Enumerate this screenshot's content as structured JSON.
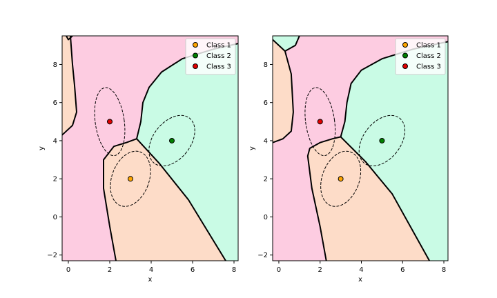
{
  "chart_data": [
    {
      "type": "scatter",
      "title": "",
      "xlabel": "x",
      "ylabel": "y",
      "xlim": [
        -0.3,
        8.2
      ],
      "ylim": [
        -2.3,
        9.5
      ],
      "xticks": [
        0,
        2,
        4,
        6,
        8
      ],
      "yticks": [
        -2,
        0,
        2,
        4,
        6,
        8
      ],
      "xtick_labels": [
        "0",
        "2",
        "4",
        "6",
        "8"
      ],
      "ytick_labels": [
        "−2",
        "0",
        "2",
        "4",
        "6",
        "8"
      ],
      "legend_position": "top-right",
      "series": [
        {
          "name": "Class 1",
          "color": "#ffa500",
          "region_color": "#fddcc8",
          "points": [
            [
              3,
              2
            ]
          ],
          "ellipse": {
            "cx": 3,
            "cy": 2,
            "rx": 0.9,
            "ry": 1.5,
            "angle_deg": 20
          }
        },
        {
          "name": "Class 2",
          "color": "#008000",
          "region_color": "#c9fbe5",
          "points": [
            [
              5,
              4
            ]
          ],
          "ellipse": {
            "cx": 5,
            "cy": 4,
            "rx": 0.9,
            "ry": 1.5,
            "angle_deg": 38
          }
        },
        {
          "name": "Class 3",
          "color": "#e00000",
          "region_color": "#fdcce1",
          "points": [
            [
              2,
              5
            ]
          ],
          "ellipse": {
            "cx": 2,
            "cy": 5,
            "rx": 0.7,
            "ry": 1.8,
            "angle_deg": -8
          }
        }
      ],
      "regions": [
        {
          "class": "Class 3",
          "polygon": [
            [
              -0.3,
              -2.3
            ],
            [
              8.2,
              -2.3
            ],
            [
              8.2,
              9.5
            ],
            [
              -0.3,
              9.5
            ]
          ]
        },
        {
          "class": "Class 1",
          "polygon": [
            [
              -0.3,
              9.5
            ],
            [
              0.1,
              9.5
            ],
            [
              0.2,
              8.0
            ],
            [
              0.3,
              6.9
            ],
            [
              0.4,
              5.5
            ],
            [
              0.2,
              4.8
            ],
            [
              -0.3,
              4.3
            ]
          ]
        },
        {
          "class": "Class 1",
          "polygon": [
            [
              2.3,
              -2.3
            ],
            [
              2.0,
              -0.5
            ],
            [
              1.7,
              1.5
            ],
            [
              1.7,
              3.0
            ],
            [
              2.2,
              3.7
            ],
            [
              2.8,
              3.9
            ],
            [
              3.3,
              4.1
            ],
            [
              4.4,
              2.8
            ],
            [
              5.8,
              0.9
            ],
            [
              7.6,
              -2.3
            ]
          ]
        },
        {
          "class": "Class 2",
          "polygon": [
            [
              3.3,
              4.1
            ],
            [
              4.4,
              2.8
            ],
            [
              5.8,
              0.9
            ],
            [
              7.6,
              -2.3
            ],
            [
              8.2,
              -2.3
            ],
            [
              8.2,
              9.1
            ],
            [
              7.0,
              8.8
            ],
            [
              5.5,
              8.3
            ],
            [
              4.5,
              7.6
            ],
            [
              3.9,
              6.8
            ],
            [
              3.6,
              6.0
            ],
            [
              3.5,
              5.0
            ]
          ]
        }
      ],
      "boundaries": [
        [
          [
            0.1,
            9.5
          ],
          [
            0.2,
            8.0
          ],
          [
            0.3,
            6.9
          ],
          [
            0.4,
            5.5
          ],
          [
            0.2,
            4.8
          ],
          [
            -0.3,
            4.3
          ]
        ],
        [
          [
            2.3,
            -2.3
          ],
          [
            2.0,
            -0.5
          ],
          [
            1.7,
            1.5
          ],
          [
            1.7,
            3.0
          ],
          [
            2.2,
            3.7
          ],
          [
            2.8,
            3.9
          ],
          [
            3.3,
            4.1
          ]
        ],
        [
          [
            3.3,
            4.1
          ],
          [
            4.4,
            2.8
          ],
          [
            5.8,
            0.9
          ],
          [
            7.6,
            -2.3
          ]
        ],
        [
          [
            3.3,
            4.1
          ],
          [
            3.5,
            5.0
          ],
          [
            3.6,
            6.0
          ],
          [
            3.9,
            6.8
          ],
          [
            4.5,
            7.6
          ],
          [
            5.5,
            8.3
          ],
          [
            7.0,
            8.8
          ],
          [
            8.2,
            9.1
          ]
        ],
        [
          [
            -0.1,
            9.5
          ],
          [
            0.0,
            9.3
          ],
          [
            0.2,
            9.5
          ]
        ]
      ]
    },
    {
      "type": "scatter",
      "title": "",
      "xlabel": "x",
      "ylabel": "y",
      "xlim": [
        -0.3,
        8.2
      ],
      "ylim": [
        -2.3,
        9.5
      ],
      "xticks": [
        0,
        2,
        4,
        6,
        8
      ],
      "yticks": [
        -2,
        0,
        2,
        4,
        6,
        8
      ],
      "xtick_labels": [
        "0",
        "2",
        "4",
        "6",
        "8"
      ],
      "ytick_labels": [
        "−2",
        "0",
        "2",
        "4",
        "6",
        "8"
      ],
      "legend_position": "top-right",
      "series": [
        {
          "name": "Class 1",
          "color": "#ffa500",
          "region_color": "#fddcc8",
          "points": [
            [
              3,
              2
            ]
          ],
          "ellipse": {
            "cx": 3,
            "cy": 2,
            "rx": 0.9,
            "ry": 1.5,
            "angle_deg": 20
          }
        },
        {
          "name": "Class 2",
          "color": "#008000",
          "region_color": "#c9fbe5",
          "points": [
            [
              5,
              4
            ]
          ],
          "ellipse": {
            "cx": 5,
            "cy": 4,
            "rx": 0.9,
            "ry": 1.5,
            "angle_deg": 38
          }
        },
        {
          "name": "Class 3",
          "color": "#e00000",
          "region_color": "#fdcce1",
          "points": [
            [
              2,
              5
            ]
          ],
          "ellipse": {
            "cx": 2,
            "cy": 5,
            "rx": 0.7,
            "ry": 1.8,
            "angle_deg": -8
          }
        }
      ],
      "regions": [
        {
          "class": "Class 3",
          "polygon": [
            [
              -0.3,
              -2.3
            ],
            [
              8.2,
              -2.3
            ],
            [
              8.2,
              9.5
            ],
            [
              -0.3,
              9.5
            ]
          ]
        },
        {
          "class": "Class 2",
          "polygon": [
            [
              -0.3,
              9.5
            ],
            [
              1.0,
              9.5
            ],
            [
              0.8,
              9.0
            ],
            [
              0.3,
              8.7
            ],
            [
              -0.3,
              9.3
            ]
          ]
        },
        {
          "class": "Class 1",
          "polygon": [
            [
              -0.3,
              9.3
            ],
            [
              0.3,
              8.7
            ],
            [
              0.6,
              7.5
            ],
            [
              0.7,
              5.5
            ],
            [
              0.6,
              4.5
            ],
            [
              0.2,
              4.1
            ],
            [
              -0.3,
              3.9
            ]
          ]
        },
        {
          "class": "Class 1",
          "polygon": [
            [
              2.3,
              -2.3
            ],
            [
              2.0,
              -0.5
            ],
            [
              1.6,
              1.5
            ],
            [
              1.4,
              3.2
            ],
            [
              1.5,
              3.6
            ],
            [
              2.0,
              3.9
            ],
            [
              2.6,
              4.1
            ],
            [
              3.0,
              4.2
            ],
            [
              4.2,
              2.9
            ],
            [
              5.5,
              1.2
            ],
            [
              7.3,
              -2.3
            ]
          ]
        },
        {
          "class": "Class 2",
          "polygon": [
            [
              3.0,
              4.2
            ],
            [
              4.2,
              2.9
            ],
            [
              5.5,
              1.2
            ],
            [
              7.3,
              -2.3
            ],
            [
              8.2,
              -2.3
            ],
            [
              8.2,
              9.2
            ],
            [
              6.5,
              8.8
            ],
            [
              5.0,
              8.3
            ],
            [
              4.0,
              7.7
            ],
            [
              3.5,
              7.0
            ],
            [
              3.3,
              6.0
            ],
            [
              3.2,
              5.0
            ]
          ]
        }
      ],
      "boundaries": [
        [
          [
            1.0,
            9.5
          ],
          [
            0.8,
            9.0
          ],
          [
            0.3,
            8.7
          ]
        ],
        [
          [
            -0.3,
            9.3
          ],
          [
            0.3,
            8.7
          ],
          [
            0.6,
            7.5
          ],
          [
            0.7,
            5.5
          ],
          [
            0.6,
            4.5
          ],
          [
            0.2,
            4.1
          ],
          [
            -0.3,
            3.9
          ]
        ],
        [
          [
            2.3,
            -2.3
          ],
          [
            2.0,
            -0.5
          ],
          [
            1.6,
            1.5
          ],
          [
            1.4,
            3.2
          ],
          [
            1.5,
            3.6
          ],
          [
            2.0,
            3.9
          ],
          [
            2.6,
            4.1
          ],
          [
            3.0,
            4.2
          ]
        ],
        [
          [
            3.0,
            4.2
          ],
          [
            4.2,
            2.9
          ],
          [
            5.5,
            1.2
          ],
          [
            7.3,
            -2.3
          ]
        ],
        [
          [
            3.0,
            4.2
          ],
          [
            3.2,
            5.0
          ],
          [
            3.3,
            6.0
          ],
          [
            3.5,
            7.0
          ],
          [
            4.0,
            7.7
          ],
          [
            5.0,
            8.3
          ],
          [
            6.5,
            8.8
          ],
          [
            8.2,
            9.2
          ]
        ]
      ]
    }
  ]
}
